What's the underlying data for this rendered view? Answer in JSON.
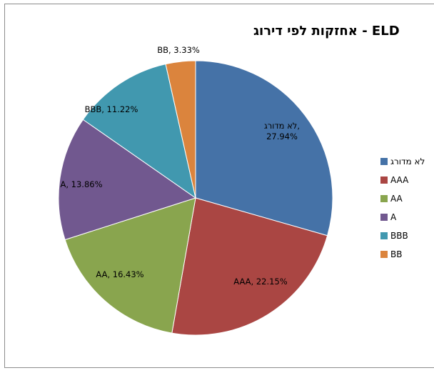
{
  "chart_data": {
    "type": "pie",
    "title": "אחזקות לפי דירוג - ELD",
    "categories": [
      "לא מדורג",
      "AAA",
      "AA",
      "A",
      "BBB",
      "BB"
    ],
    "values": [
      27.94,
      22.15,
      16.43,
      13.86,
      11.22,
      3.33
    ],
    "colors": [
      "#4572A7",
      "#AA4643",
      "#89A54E",
      "#71588F",
      "#4198AF",
      "#DB843D"
    ],
    "data_labels": [
      "לא מדורג,\n27.94%",
      "AAA, 22.15%",
      "AA, 16.43%",
      "A, 13.86%",
      "BBB, 11.22%",
      "BB, 3.33%"
    ],
    "legend_position": "right"
  }
}
